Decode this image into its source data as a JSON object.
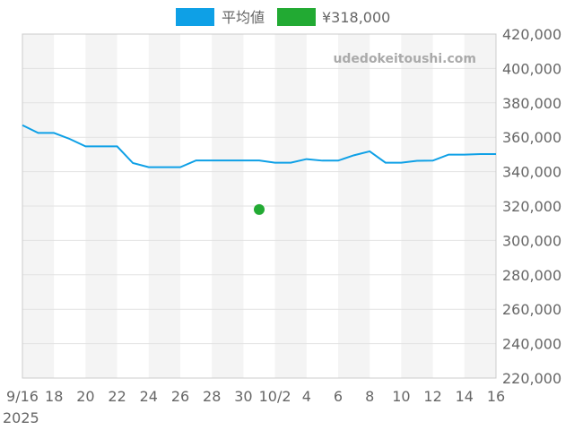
{
  "chart_data": {
    "type": "line",
    "watermark": "udedokeitoushi.com",
    "x_start": "2025-09-16",
    "x_tick_labels": [
      "9/16",
      "18",
      "20",
      "22",
      "24",
      "26",
      "28",
      "30",
      "10/2",
      "4",
      "6",
      "8",
      "10",
      "12",
      "14",
      "16"
    ],
    "x_year_label": "2025",
    "y_tick_labels": [
      "420,000",
      "400,000",
      "380,000",
      "360,000",
      "340,000",
      "320,000",
      "300,000",
      "280,000",
      "260,000",
      "240,000",
      "220,000"
    ],
    "ylim": [
      220000,
      420000
    ],
    "grid": true,
    "legend_position": "top",
    "series": [
      {
        "name": "平均値",
        "color": "#0ea0e6",
        "type": "line",
        "x": [
          "9/16",
          "9/17",
          "9/18",
          "9/19",
          "9/20",
          "9/21",
          "9/22",
          "9/23",
          "9/24",
          "9/25",
          "9/26",
          "9/27",
          "9/28",
          "9/29",
          "9/30",
          "10/1",
          "10/2",
          "10/3",
          "10/4",
          "10/5",
          "10/6",
          "10/7",
          "10/8",
          "10/9",
          "10/10",
          "10/11",
          "10/12",
          "10/13",
          "10/14",
          "10/15",
          "10/16"
        ],
        "values": [
          367000,
          362500,
          362500,
          359000,
          354700,
          354700,
          354700,
          345000,
          342600,
          342600,
          342600,
          346500,
          346500,
          346500,
          346500,
          346500,
          345200,
          345200,
          347300,
          346400,
          346400,
          349500,
          351800,
          345200,
          345200,
          346300,
          346400,
          349900,
          349900,
          350200,
          350200
        ]
      },
      {
        "name": "¥318,000",
        "color": "#22aa33",
        "type": "scatter",
        "x": [
          "10/1"
        ],
        "values": [
          318000
        ]
      }
    ]
  }
}
